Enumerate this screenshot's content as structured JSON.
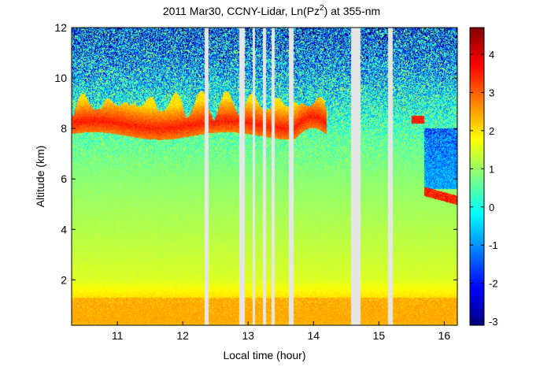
{
  "chart_data": {
    "type": "heatmap",
    "title": "2011 Mar30, CCNY-Lidar, Ln(Pz",
    "title_superscript": "2",
    "title_suffix": ") at 355-nm",
    "xlabel": "Local time (hour)",
    "ylabel": "Altitude (km)",
    "xlim": [
      10.3,
      16.2
    ],
    "ylim": [
      0.2,
      12
    ],
    "x_ticks": [
      11,
      12,
      13,
      14,
      15,
      16
    ],
    "y_ticks": [
      2,
      4,
      6,
      8,
      10,
      12
    ],
    "colorbar": {
      "colormap": "jet",
      "range": [
        -3.1,
        4.7
      ],
      "ticks": [
        -3,
        -2,
        -1,
        0,
        1,
        2,
        3,
        4
      ]
    },
    "data_gaps_hours": [
      [
        12.33,
        12.4
      ],
      [
        12.87,
        12.95
      ],
      [
        13.07,
        13.11
      ],
      [
        13.22,
        13.27
      ],
      [
        13.36,
        13.41
      ],
      [
        13.62,
        13.7
      ],
      [
        14.58,
        14.72
      ],
      [
        15.14,
        15.21
      ]
    ],
    "layers": [
      {
        "x": [
          10.3,
          14.2
        ],
        "altitude_km": [
          7.6,
          9.2
        ],
        "value_range": [
          2.0,
          3.6
        ]
      },
      {
        "x": [
          15.5,
          15.7
        ],
        "altitude_km": [
          8.2,
          8.5
        ],
        "value_range": [
          3.0,
          3.8
        ]
      },
      {
        "x": [
          15.7,
          16.2
        ],
        "altitude_km": [
          5.0,
          5.6
        ],
        "value_range": [
          2.5,
          4.0
        ]
      }
    ],
    "background_trend": [
      {
        "altitude_km": 0.2,
        "value": 2.3
      },
      {
        "altitude_km": 1.0,
        "value": 2.2
      },
      {
        "altitude_km": 2.0,
        "value": 1.5
      },
      {
        "altitude_km": 4.0,
        "value": 1.2
      },
      {
        "altitude_km": 6.0,
        "value": 0.9
      },
      {
        "altitude_km": 7.5,
        "value": 0.6
      },
      {
        "altitude_km": 9.5,
        "value": -0.2
      },
      {
        "altitude_km": 12.0,
        "value": -1.5
      }
    ]
  }
}
